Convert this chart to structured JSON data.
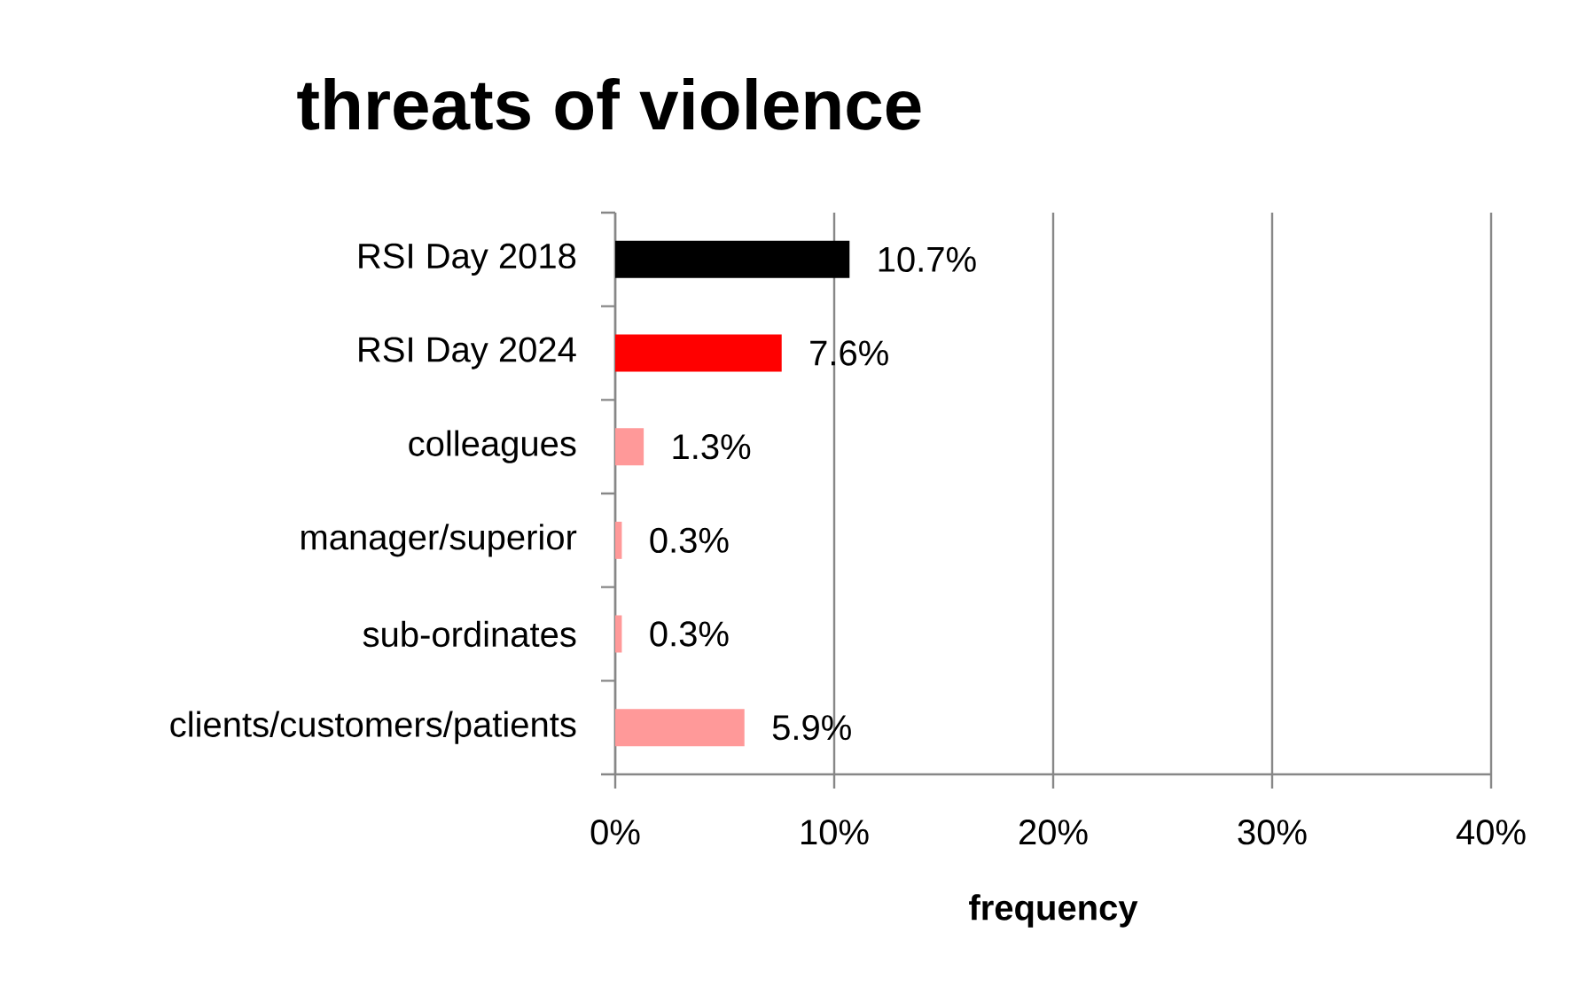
{
  "chart_data": {
    "type": "bar",
    "orientation": "horizontal",
    "title": "threats of violence",
    "xlabel": "frequency",
    "categories": [
      "RSI Day 2018",
      "RSI Day 2024",
      "colleagues",
      "manager/superior",
      "sub-ordinates",
      "clients/customers/patients"
    ],
    "values": [
      10.7,
      7.6,
      1.3,
      0.3,
      0.3,
      5.9
    ],
    "colors": [
      "#000000",
      "#ff0000",
      "#ff9999",
      "#ff9999",
      "#ff9999",
      "#ff9999"
    ],
    "value_labels": [
      "10.7%",
      "7.6%",
      "1.3%",
      "0.3%",
      "0.3%",
      "5.9%"
    ],
    "xlim": [
      0,
      40
    ],
    "xticks": [
      {
        "value": 0,
        "label": "0%"
      },
      {
        "value": 10,
        "label": "10%"
      },
      {
        "value": 20,
        "label": "20%"
      },
      {
        "value": 30,
        "label": "30%"
      },
      {
        "value": 40,
        "label": "40%"
      }
    ],
    "grid": "x"
  }
}
